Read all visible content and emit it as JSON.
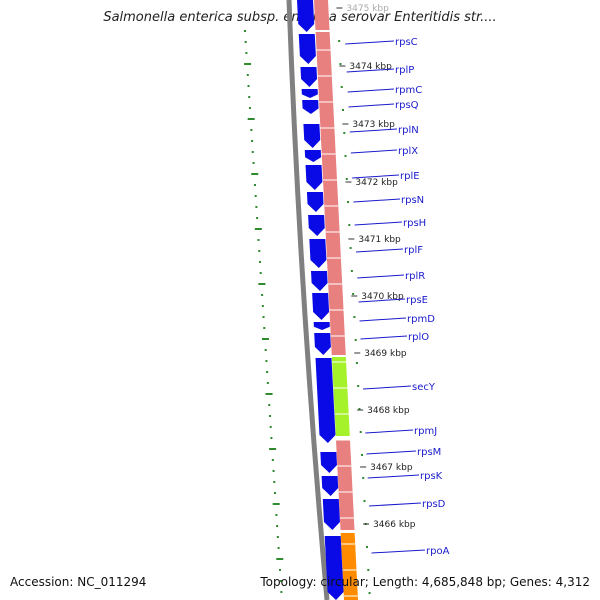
{
  "title": "Salmonella enterica subsp. enterica serovar Enteritidis str....",
  "accession_label": "Accession: NC_011294",
  "summary_label": "Topology: circular; Length: 4,685,848 bp; Genes: 4,312",
  "colors": {
    "cds": "#0a0ae6",
    "rna_track": "#e88080",
    "secY_highlight": "#a6f22a",
    "rpoA_highlight": "#ff8c00",
    "backbone": "#808080",
    "label": "#1a1acc",
    "dots": "#2e8b2e",
    "kbp_text": "#222222"
  },
  "kbp_ticks": [
    "3475 kbp",
    "3474 kbp",
    "3473 kbp",
    "3472 kbp",
    "3471 kbp",
    "3470 kbp",
    "3469 kbp",
    "3468 kbp",
    "3467 kbp",
    "3466 kbp"
  ],
  "genes": [
    "rpsC",
    "rplP",
    "rpmC",
    "rpsQ",
    "rplN",
    "rplX",
    "rplE",
    "rpsN",
    "rpsH",
    "rplF",
    "rplR",
    "rpsE",
    "rpmD",
    "rplO",
    "secY",
    "rpmJ",
    "rpsM",
    "rpsK",
    "rpsD",
    "rpoA"
  ]
}
